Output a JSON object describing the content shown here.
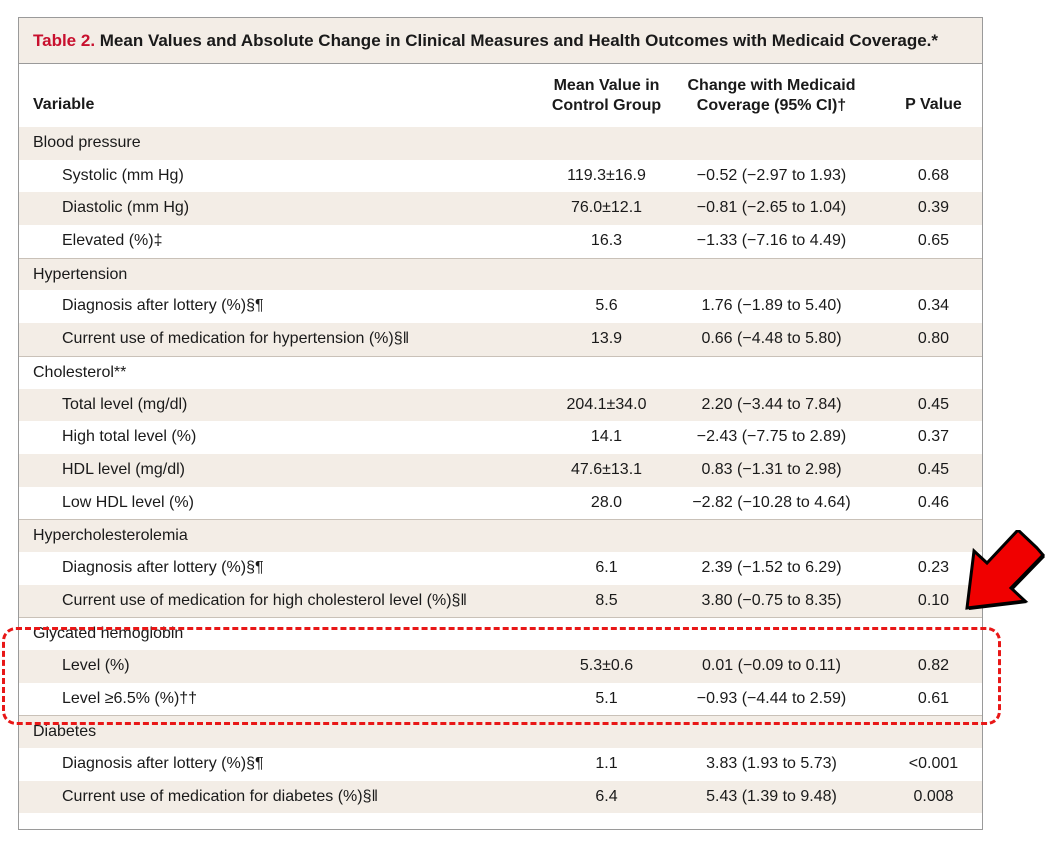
{
  "table": {
    "title_label": "Table 2.",
    "title_text": " Mean Values and Absolute Change in Clinical Measures and Health Outcomes with Medicaid Coverage.*",
    "headers": {
      "variable": "Variable",
      "mean_line1": "Mean Value in",
      "mean_line2": "Control Group",
      "change_line1": "Change with Medicaid",
      "change_line2": "Coverage (95% CI)†",
      "p_value": "P Value"
    },
    "rows": [
      {
        "type": "section",
        "label": "Blood pressure",
        "mean": "",
        "change": "",
        "p": ""
      },
      {
        "type": "item",
        "label": "Systolic (mm Hg)",
        "mean": "119.3±16.9",
        "change": "−0.52 (−2.97 to 1.93)",
        "p": "0.68"
      },
      {
        "type": "item",
        "label": "Diastolic (mm Hg)",
        "mean": "76.0±12.1",
        "change": "−0.81 (−2.65 to 1.04)",
        "p": "0.39"
      },
      {
        "type": "item",
        "label": "Elevated (%)‡",
        "mean": "16.3",
        "change": "−1.33 (−7.16 to 4.49)",
        "p": "0.65"
      },
      {
        "type": "section",
        "label": "Hypertension",
        "mean": "",
        "change": "",
        "p": ""
      },
      {
        "type": "item",
        "label": "Diagnosis after lottery (%)§¶",
        "mean": "5.6",
        "change": "1.76 (−1.89 to 5.40)",
        "p": "0.34"
      },
      {
        "type": "item",
        "label": "Current use of medication for hypertension (%)§‖",
        "mean": "13.9",
        "change": "0.66 (−4.48 to 5.80)",
        "p": "0.80"
      },
      {
        "type": "section",
        "label": "Cholesterol**",
        "mean": "",
        "change": "",
        "p": ""
      },
      {
        "type": "item",
        "label": "Total level (mg/dl)",
        "mean": "204.1±34.0",
        "change": "2.20 (−3.44 to 7.84)",
        "p": "0.45"
      },
      {
        "type": "item",
        "label": "High total level (%)",
        "mean": "14.1",
        "change": "−2.43 (−7.75 to 2.89)",
        "p": "0.37"
      },
      {
        "type": "item",
        "label": "HDL level (mg/dl)",
        "mean": "47.6±13.1",
        "change": "0.83 (−1.31 to 2.98)",
        "p": "0.45"
      },
      {
        "type": "item",
        "label": "Low HDL level (%)",
        "mean": "28.0",
        "change": "−2.82 (−10.28 to 4.64)",
        "p": "0.46"
      },
      {
        "type": "section",
        "label": "Hypercholesterolemia",
        "mean": "",
        "change": "",
        "p": ""
      },
      {
        "type": "item",
        "label": "Diagnosis after lottery (%)§¶",
        "mean": "6.1",
        "change": "2.39 (−1.52 to 6.29)",
        "p": "0.23"
      },
      {
        "type": "item",
        "label": "Current use of medication for high cholesterol level (%)§‖",
        "mean": "8.5",
        "change": "3.80 (−0.75 to 8.35)",
        "p": "0.10"
      },
      {
        "type": "section",
        "label": "Glycated hemoglobin",
        "mean": "",
        "change": "",
        "p": ""
      },
      {
        "type": "item",
        "label": "Level (%)",
        "mean": "5.3±0.6",
        "change": "0.01 (−0.09 to 0.11)",
        "p": "0.82"
      },
      {
        "type": "item",
        "label": "Level ≥6.5% (%)††",
        "mean": "5.1",
        "change": "−0.93 (−4.44 to 2.59)",
        "p": "0.61"
      },
      {
        "type": "section",
        "label": "Diabetes",
        "mean": "",
        "change": "",
        "p": ""
      },
      {
        "type": "item",
        "label": "Diagnosis after lottery (%)§¶",
        "mean": "1.1",
        "change": "3.83 (1.93 to 5.73)",
        "p": "<0.001"
      },
      {
        "type": "item",
        "label": "Current use of medication for diabetes (%)§‖",
        "mean": "6.4",
        "change": "5.43 (1.39 to 9.48)",
        "p": "0.008"
      }
    ]
  },
  "colors": {
    "title_label": "#c8102e",
    "row_shade": "#f3ede6",
    "annotation": "#e81717"
  },
  "annotations": {
    "highlight_box": "dashed-red-rounded-box",
    "arrow": "red-arrow-icon"
  }
}
